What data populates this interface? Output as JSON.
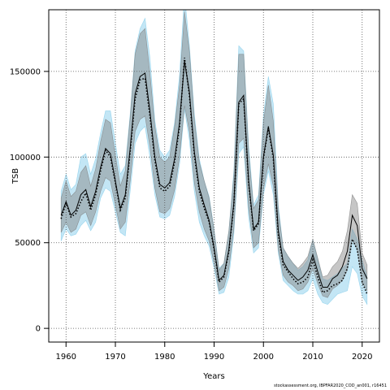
{
  "chart_data": {
    "type": "line",
    "title": "",
    "xlabel": "Years",
    "ylabel": "TSB",
    "xlim": [
      1956.5,
      2023.5
    ],
    "ylim": [
      -8000,
      186000
    ],
    "x_ticks": [
      1960,
      1970,
      1980,
      1990,
      2000,
      2010,
      2020
    ],
    "y_ticks": [
      0,
      50000,
      100000,
      150000
    ],
    "grid": true,
    "series": [
      {
        "style": "dotted line with blue confidence band",
        "x": [
          1959,
          1960,
          1961,
          1962,
          1963,
          1964,
          1965,
          1966,
          1967,
          1968,
          1969,
          1970,
          1971,
          1972,
          1973,
          1974,
          1975,
          1976,
          1977,
          1978,
          1979,
          1980,
          1981,
          1982,
          1983,
          1984,
          1985,
          1986,
          1987,
          1988,
          1989,
          1990,
          1991,
          1992,
          1993,
          1994,
          1995,
          1996,
          1997,
          1998,
          1999,
          2000,
          2001,
          2002,
          2003,
          2004,
          2005,
          2006,
          2007,
          2008,
          2009,
          2010,
          2011,
          2012,
          2013,
          2014,
          2015,
          2016,
          2017,
          2018,
          2019,
          2020,
          2021
        ],
        "values": [
          64000,
          73000,
          65000,
          67000,
          74000,
          79000,
          69000,
          78000,
          92000,
          104000,
          100000,
          85000,
          69000,
          76000,
          103000,
          134000,
          145000,
          146000,
          124000,
          98000,
          82000,
          80000,
          83000,
          97000,
          118000,
          158000,
          136000,
          101000,
          80000,
          70000,
          62000,
          46000,
          27000,
          30000,
          45000,
          72000,
          131000,
          134000,
          85000,
          57000,
          61000,
          99000,
          117000,
          99000,
          55000,
          37000,
          33000,
          29000,
          26000,
          27000,
          30000,
          40000,
          30000,
          21000,
          22000,
          25000,
          26000,
          28000,
          35000,
          52000,
          46000,
          27000,
          20000
        ],
        "lower": [
          51000,
          58000,
          54000,
          55000,
          60000,
          63000,
          57000,
          62000,
          76000,
          82000,
          80000,
          68000,
          56000,
          54000,
          80000,
          108000,
          115000,
          118000,
          100000,
          78000,
          65000,
          64000,
          66000,
          77000,
          96000,
          128000,
          110000,
          80000,
          62000,
          54000,
          48000,
          35000,
          20000,
          21000,
          30000,
          55000,
          102000,
          106000,
          65000,
          44000,
          47000,
          78000,
          92000,
          78000,
          44000,
          28000,
          25000,
          22000,
          20000,
          20000,
          22000,
          29000,
          20000,
          15000,
          14000,
          17000,
          20000,
          21000,
          22000,
          36000,
          32000,
          19000,
          14000
        ],
        "upper": [
          80000,
          90000,
          81000,
          84000,
          100000,
          102000,
          90000,
          99000,
          114000,
          127000,
          127000,
          108000,
          90000,
          95000,
          125000,
          162000,
          175000,
          181000,
          158000,
          121000,
          104000,
          100000,
          104000,
          120000,
          148000,
          195000,
          165000,
          125000,
          99000,
          86000,
          77000,
          58000,
          35000,
          38000,
          57000,
          92000,
          165000,
          162000,
          107000,
          72000,
          78000,
          124000,
          147000,
          131000,
          72000,
          47000,
          42000,
          38000,
          34000,
          36000,
          40000,
          52000,
          40000,
          29000,
          28000,
          30000,
          32000,
          35000,
          38000,
          58000,
          52000,
          40000,
          30000
        ]
      },
      {
        "style": "solid line with grey confidence band",
        "x": [
          1959,
          1960,
          1961,
          1962,
          1963,
          1964,
          1965,
          1966,
          1967,
          1968,
          1969,
          1970,
          1971,
          1972,
          1973,
          1974,
          1975,
          1976,
          1977,
          1978,
          1979,
          1980,
          1981,
          1982,
          1983,
          1984,
          1985,
          1986,
          1987,
          1988,
          1989,
          1990,
          1991,
          1992,
          1993,
          1994,
          1995,
          1996,
          1997,
          1998,
          1999,
          2000,
          2001,
          2002,
          2003,
          2004,
          2005,
          2006,
          2007,
          2008,
          2009,
          2010,
          2011,
          2012,
          2013,
          2014,
          2015,
          2016,
          2017,
          2018,
          2019,
          2020,
          2021
        ],
        "values": [
          66000,
          74000,
          66000,
          69000,
          78000,
          81000,
          71000,
          80000,
          94000,
          105000,
          102000,
          86000,
          70000,
          78000,
          105000,
          137000,
          147000,
          149000,
          127000,
          100000,
          84000,
          82000,
          85000,
          99000,
          120000,
          156000,
          138000,
          103000,
          82000,
          72000,
          63000,
          47000,
          28000,
          31000,
          46000,
          73000,
          132000,
          136000,
          86000,
          58000,
          62000,
          100000,
          118000,
          101000,
          57000,
          39000,
          34000,
          31000,
          28000,
          30000,
          34000,
          43000,
          33000,
          24000,
          24000,
          29000,
          31000,
          36000,
          45000,
          66000,
          60000,
          35000,
          29000
        ],
        "lower": [
          56000,
          62000,
          56000,
          58000,
          66000,
          68000,
          60000,
          68000,
          80000,
          88000,
          86000,
          72000,
          58000,
          62000,
          86000,
          115000,
          122000,
          124000,
          106000,
          82000,
          68000,
          67000,
          70000,
          81000,
          100000,
          130000,
          115000,
          85000,
          68000,
          58000,
          51000,
          38000,
          22000,
          24000,
          35000,
          58000,
          108000,
          111000,
          70000,
          47000,
          50000,
          81000,
          96000,
          83000,
          46000,
          31000,
          27000,
          25000,
          22000,
          23000,
          27000,
          35000,
          26000,
          19000,
          18000,
          23000,
          25000,
          28000,
          34000,
          52000,
          46000,
          27000,
          22000
        ],
        "upper": [
          76000,
          86000,
          77000,
          80000,
          91000,
          95000,
          83000,
          93000,
          109000,
          122000,
          120000,
          101000,
          83000,
          92000,
          123000,
          160000,
          172000,
          175000,
          149000,
          118000,
          100000,
          97000,
          100000,
          118000,
          142000,
          185000,
          162000,
          122000,
          97000,
          86000,
          76000,
          57000,
          34000,
          38000,
          57000,
          89000,
          160000,
          160000,
          103000,
          70000,
          75000,
          120000,
          142000,
          121000,
          69000,
          47000,
          42000,
          38000,
          35000,
          38000,
          42000,
          52000,
          41000,
          30000,
          31000,
          36000,
          39000,
          45000,
          57000,
          78000,
          73000,
          44000,
          37000
        ]
      }
    ],
    "footer": "stockassessment.org, IBPFAR2020_COD_an001, r16451"
  },
  "colors": {
    "band_blue": "#87CEEB",
    "band_grey": "#808080",
    "line": "#000000",
    "grid": "#555555"
  }
}
